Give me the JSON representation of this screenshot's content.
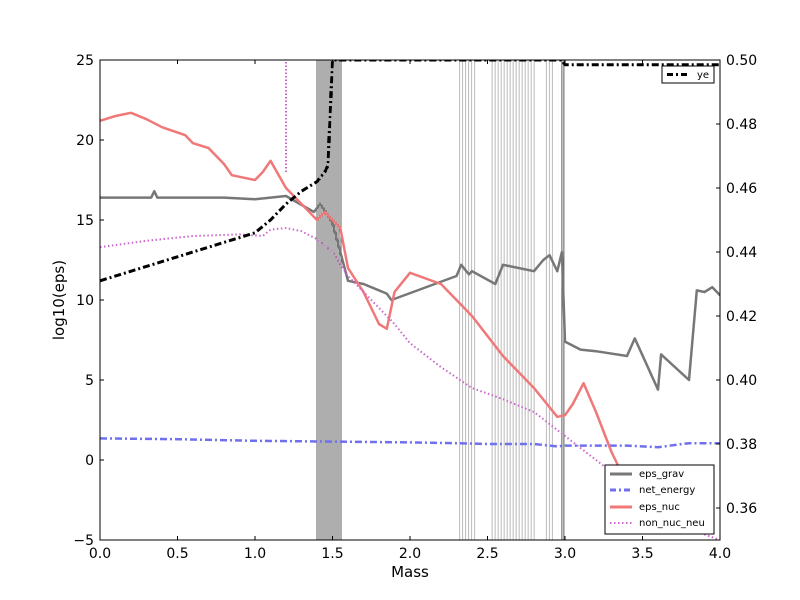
{
  "chart_data": {
    "type": "line",
    "xlabel": "Mass",
    "ylabel": "log10(eps)",
    "xlim": [
      0.0,
      4.0
    ],
    "ylim": [
      -5,
      25
    ],
    "y2lim": [
      0.35,
      0.5
    ],
    "x_ticks": [
      "0.0",
      "0.5",
      "1.0",
      "1.5",
      "2.0",
      "2.5",
      "3.0",
      "3.5",
      "4.0"
    ],
    "y_ticks": [
      "−5",
      "0",
      "5",
      "10",
      "15",
      "20",
      "25"
    ],
    "y2_ticks": [
      "0.36",
      "0.38",
      "0.40",
      "0.42",
      "0.44",
      "0.46",
      "0.48",
      "0.50"
    ],
    "legend_placement": "lower-right",
    "legend2_placement": "upper-right",
    "series": [
      {
        "name": "eps_grav",
        "axis": "left",
        "color": "#777777",
        "style": "solid",
        "x": [
          0.0,
          0.33,
          0.35,
          0.37,
          0.8,
          1.0,
          1.2,
          1.38,
          1.42,
          1.47,
          1.5,
          1.55,
          1.6,
          1.7,
          1.85,
          1.88,
          2.3,
          2.33,
          2.38,
          2.4,
          2.55,
          2.6,
          2.8,
          2.86,
          2.9,
          2.95,
          2.98,
          3.0,
          3.1,
          3.2,
          3.4,
          3.45,
          3.6,
          3.62,
          3.8,
          3.85,
          3.9,
          3.95,
          4.0
        ],
        "y": [
          16.4,
          16.4,
          16.8,
          16.4,
          16.4,
          16.3,
          16.5,
          15.5,
          16.0,
          15.3,
          14.8,
          13.0,
          11.2,
          11.0,
          10.4,
          10.0,
          11.5,
          12.2,
          11.6,
          11.8,
          11.0,
          12.2,
          11.8,
          12.5,
          12.8,
          11.8,
          13.0,
          7.4,
          6.9,
          6.8,
          6.5,
          7.6,
          4.4,
          6.6,
          5.0,
          10.6,
          10.5,
          10.8,
          10.3
        ]
      },
      {
        "name": "net_energy",
        "axis": "left",
        "color": "#7070ee",
        "style": "dashdot",
        "x": [
          0.0,
          0.5,
          1.0,
          1.5,
          2.0,
          2.3,
          2.5,
          2.8,
          2.95,
          3.0,
          3.2,
          3.4,
          3.6,
          3.8,
          4.0
        ],
        "y": [
          1.35,
          1.3,
          1.2,
          1.15,
          1.1,
          1.05,
          1.0,
          1.0,
          0.85,
          0.9,
          0.9,
          0.9,
          0.8,
          1.05,
          1.05
        ]
      },
      {
        "name": "eps_nuc",
        "axis": "left",
        "color": "#f07878",
        "style": "solid",
        "x": [
          0.0,
          0.1,
          0.2,
          0.3,
          0.4,
          0.55,
          0.6,
          0.7,
          0.8,
          0.85,
          0.9,
          1.0,
          1.05,
          1.1,
          1.2,
          1.3,
          1.4,
          1.45,
          1.5,
          1.55,
          1.6,
          1.7,
          1.8,
          1.85,
          1.9,
          2.0,
          2.2,
          2.4,
          2.6,
          2.8,
          2.95,
          3.0,
          3.05,
          3.12,
          3.2,
          3.3,
          3.4,
          3.5
        ],
        "y": [
          21.2,
          21.5,
          21.7,
          21.3,
          20.8,
          20.3,
          19.8,
          19.5,
          18.5,
          17.8,
          17.7,
          17.5,
          18.0,
          18.7,
          17.0,
          16.0,
          15.0,
          15.5,
          15.0,
          14.5,
          12.0,
          10.5,
          8.5,
          8.2,
          10.5,
          11.7,
          11.0,
          9.0,
          6.5,
          4.5,
          2.7,
          2.8,
          3.5,
          4.8,
          3.0,
          0.5,
          -1.5,
          -3.5
        ]
      },
      {
        "name": "non_nuc_neu",
        "axis": "left",
        "color": "#cc66cc",
        "style": "dotted",
        "x": [
          0.0,
          0.3,
          0.6,
          0.9,
          1.05,
          1.1,
          1.2,
          1.3,
          1.4,
          1.5,
          1.6,
          1.7,
          1.8,
          1.9,
          2.0,
          2.2,
          2.4,
          2.6,
          2.8,
          3.0,
          3.2,
          3.4,
          3.6,
          3.8,
          4.0
        ],
        "y": [
          13.3,
          13.7,
          14.0,
          14.1,
          14.0,
          14.4,
          14.5,
          14.3,
          13.8,
          13.0,
          11.5,
          10.5,
          9.5,
          8.5,
          7.3,
          5.8,
          4.5,
          3.8,
          3.0,
          1.5,
          0.0,
          -1.5,
          -3.0,
          -4.3,
          -5.0
        ]
      },
      {
        "name": "ye",
        "axis": "right",
        "color": "#000000",
        "style": "dashdot",
        "x": [
          0.0,
          0.2,
          0.4,
          0.6,
          0.8,
          1.0,
          1.1,
          1.2,
          1.3,
          1.4,
          1.45,
          1.47,
          1.5,
          1.55,
          1.6,
          2.0,
          2.5,
          2.98,
          3.0,
          3.5,
          4.0
        ],
        "y": [
          0.431,
          0.434,
          0.437,
          0.44,
          0.443,
          0.446,
          0.45,
          0.455,
          0.459,
          0.462,
          0.465,
          0.467,
          0.5,
          0.5,
          0.5,
          0.5,
          0.5,
          0.5,
          0.4985,
          0.4985,
          0.4985
        ]
      }
    ],
    "annotations": [
      {
        "name": "eps_nuc_spike",
        "x": 1.2,
        "y_from": 18.0,
        "y_to": 25.0,
        "color": "#cc66cc"
      }
    ],
    "band_regions": [
      {
        "x0": 1.4,
        "x1": 1.56,
        "shade": "dark"
      },
      {
        "x0": 2.32,
        "x1": 2.42,
        "shade": "light"
      },
      {
        "x0": 2.53,
        "x1": 2.82,
        "shade": "light"
      },
      {
        "x0": 2.88,
        "x1": 2.93,
        "shade": "light"
      },
      {
        "x0": 2.98,
        "x1": 3.0,
        "shade": "dark"
      }
    ]
  }
}
